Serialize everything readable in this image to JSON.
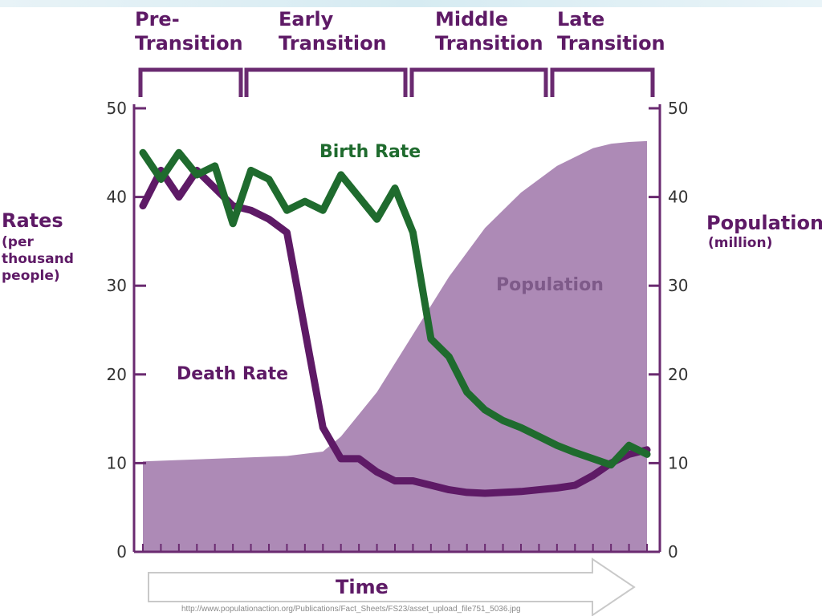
{
  "chart_data": {
    "type": "line",
    "stages": [
      "Pre-\nTransition",
      "Early\nTransition",
      "Middle\nTransition",
      "Late\nTransition"
    ],
    "left_axis": {
      "title": "Rates",
      "subtitle": "(per\nthousand\npeople)",
      "ylim": [
        0,
        50
      ],
      "ticks": [
        "0",
        "10",
        "20",
        "30",
        "40",
        "50"
      ]
    },
    "right_axis": {
      "title": "Population",
      "subtitle": "(million)",
      "ylim": [
        0,
        50
      ],
      "ticks": [
        "0",
        "10",
        "20",
        "30",
        "40",
        "50"
      ]
    },
    "xlabel": "Time",
    "x_steps": 28,
    "series": [
      {
        "name": "Birth Rate",
        "color": "#1f6b2e",
        "x": [
          0,
          1,
          2,
          3,
          4,
          5,
          6,
          7,
          8,
          9,
          10,
          11,
          12,
          13,
          14,
          15,
          16,
          17,
          18,
          19,
          20,
          21,
          22,
          23,
          24,
          25,
          26,
          27,
          28
        ],
        "values": [
          45,
          42,
          45,
          42.5,
          43.5,
          37,
          43,
          42,
          38.5,
          39.5,
          38.5,
          42.5,
          40,
          37.5,
          41,
          36,
          24,
          22,
          18,
          16,
          14.8,
          14,
          13,
          12,
          11.2,
          10.5,
          9.8,
          12,
          11
        ]
      },
      {
        "name": "Death Rate",
        "color": "#5e1a66",
        "x": [
          0,
          1,
          2,
          3,
          4,
          5,
          6,
          7,
          8,
          9,
          10,
          11,
          12,
          13,
          14,
          15,
          16,
          17,
          18,
          19,
          20,
          21,
          22,
          23,
          24,
          25,
          26,
          27,
          28
        ],
        "values": [
          39,
          43,
          40,
          43,
          41,
          39,
          38.5,
          37.5,
          36,
          25,
          14,
          10.5,
          10.5,
          9,
          8,
          8,
          7.5,
          7,
          6.7,
          6.6,
          6.7,
          6.8,
          7,
          7.2,
          7.5,
          8.6,
          10,
          11,
          11.5
        ]
      },
      {
        "name": "Population",
        "type": "area",
        "axis": "right",
        "color": "#9b70a6",
        "x": [
          0,
          4,
          8,
          10,
          11,
          13,
          15,
          17,
          19,
          21,
          23,
          25,
          26,
          27,
          28
        ],
        "values": [
          10.2,
          10.5,
          10.8,
          11.3,
          13,
          18,
          24.5,
          31,
          36.5,
          40.5,
          43.5,
          45.5,
          46,
          46.2,
          46.3
        ]
      }
    ]
  },
  "source_note": "http://www.populationaction.org/Publications/Fact_Sheets/FS23/asset_upload_file751_5036.jpg"
}
